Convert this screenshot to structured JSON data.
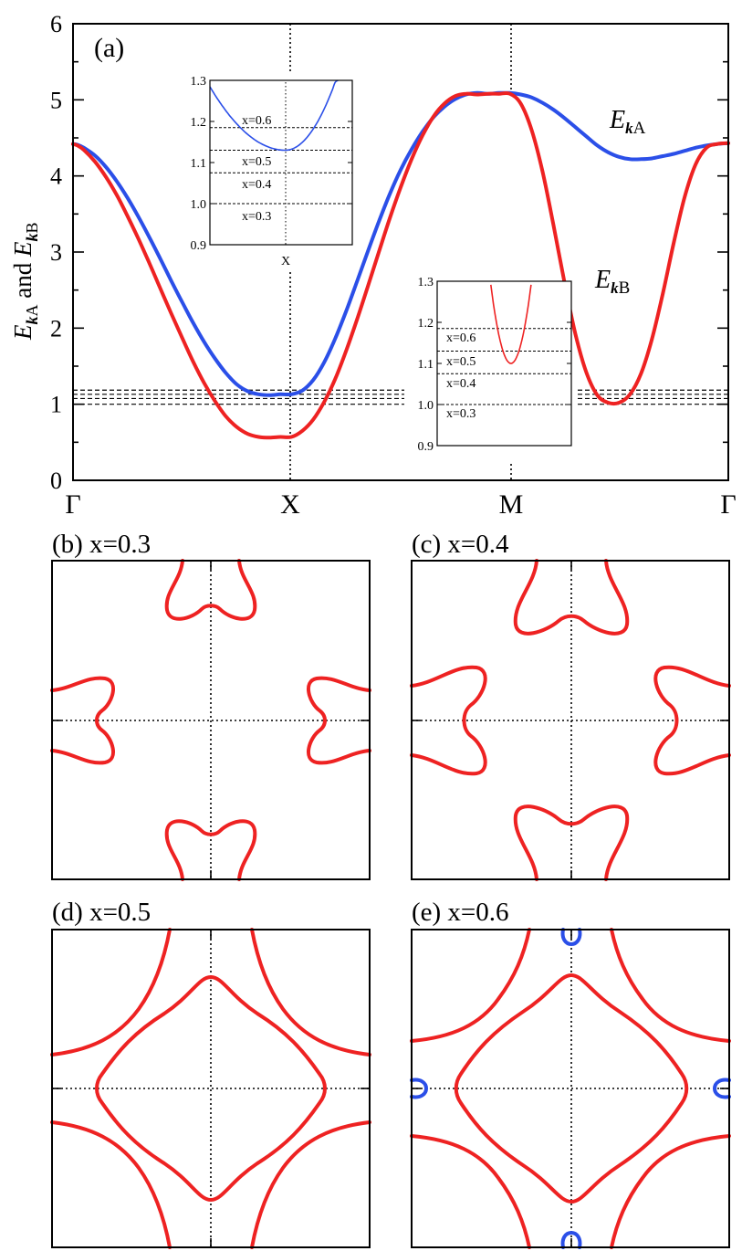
{
  "colors": {
    "band_A": "#2b4fe8",
    "band_B": "#ee2222",
    "axes": "#000000"
  },
  "chart_data": [
    {
      "id": "a",
      "type": "line",
      "panel_label": "(a)",
      "ylabel": {
        "part1_italic": "E",
        "part1_sub": "k",
        "part1_tail": "A",
        "and": " and ",
        "part2_italic": "E",
        "part2_sub": "k",
        "part2_tail": "B"
      },
      "x_ticks": [
        "Γ",
        "X",
        "M",
        "Γ"
      ],
      "y_ticks": [
        "0",
        "1",
        "2",
        "3",
        "4",
        "5",
        "6"
      ],
      "ylim": [
        0,
        6
      ],
      "dashed_levels": [
        1.0,
        1.075,
        1.13,
        1.185
      ],
      "series": [
        {
          "name": "E_kA",
          "label": {
            "italic": "E",
            "sub": "k",
            "tail": "A"
          },
          "color": "#2b4fe8",
          "x": [
            0.0,
            0.02,
            0.05,
            0.1,
            0.15,
            0.2,
            0.25,
            0.3,
            0.35,
            0.4,
            0.45,
            0.5,
            0.55,
            0.6,
            0.65,
            0.7,
            0.75,
            0.8,
            0.85,
            0.9,
            0.95,
            1.0,
            1.05,
            1.1,
            1.15,
            1.2,
            1.25,
            1.3,
            1.35,
            1.4,
            1.45,
            1.5,
            1.55,
            1.6,
            1.65,
            1.7,
            1.75,
            1.8,
            1.85,
            1.9,
            1.95,
            2.0,
            2.05,
            2.1,
            2.15,
            2.2,
            2.25,
            2.3,
            2.35,
            2.4,
            2.45,
            2.5,
            2.55,
            2.6,
            2.65,
            2.7,
            2.75,
            2.8,
            2.85,
            2.9,
            2.95,
            3.0
          ],
          "y": [
            4.42,
            4.41,
            4.37,
            4.27,
            4.12,
            3.93,
            3.71,
            3.46,
            3.19,
            2.91,
            2.62,
            2.34,
            2.07,
            1.82,
            1.6,
            1.41,
            1.26,
            1.17,
            1.13,
            1.12,
            1.13,
            1.13,
            1.18,
            1.32,
            1.55,
            1.86,
            2.22,
            2.61,
            3.01,
            3.4,
            3.76,
            4.08,
            4.35,
            4.58,
            4.77,
            4.91,
            5.01,
            5.07,
            5.09,
            5.08,
            5.09,
            5.09,
            5.07,
            5.03,
            4.96,
            4.87,
            4.76,
            4.64,
            4.52,
            4.4,
            4.31,
            4.25,
            4.22,
            4.22,
            4.23,
            4.26,
            4.29,
            4.33,
            4.37,
            4.4,
            4.42,
            4.43
          ]
        },
        {
          "name": "E_kB",
          "label": {
            "italic": "E",
            "sub": "k",
            "tail": "B"
          },
          "color": "#ee2222",
          "x": [
            0.0,
            0.02,
            0.05,
            0.1,
            0.15,
            0.2,
            0.25,
            0.3,
            0.35,
            0.4,
            0.45,
            0.5,
            0.55,
            0.6,
            0.65,
            0.7,
            0.75,
            0.8,
            0.85,
            0.9,
            0.95,
            1.0,
            1.05,
            1.1,
            1.15,
            1.2,
            1.25,
            1.3,
            1.35,
            1.4,
            1.45,
            1.5,
            1.55,
            1.6,
            1.65,
            1.7,
            1.75,
            1.8,
            1.85,
            1.9,
            1.95,
            2.0,
            2.05,
            2.1,
            2.15,
            2.2,
            2.25,
            2.3,
            2.35,
            2.4,
            2.45,
            2.5,
            2.55,
            2.6,
            2.65,
            2.7,
            2.75,
            2.8,
            2.85,
            2.9,
            2.95,
            3.0
          ],
          "y": [
            4.42,
            4.4,
            4.34,
            4.19,
            3.99,
            3.75,
            3.47,
            3.17,
            2.85,
            2.52,
            2.19,
            1.87,
            1.56,
            1.28,
            1.04,
            0.84,
            0.7,
            0.61,
            0.57,
            0.56,
            0.57,
            0.57,
            0.65,
            0.8,
            1.03,
            1.33,
            1.7,
            2.11,
            2.55,
            3.0,
            3.44,
            3.85,
            4.22,
            4.53,
            4.78,
            4.95,
            5.05,
            5.08,
            5.07,
            5.08,
            5.08,
            5.08,
            4.95,
            4.6,
            4.05,
            3.35,
            2.6,
            1.92,
            1.42,
            1.12,
            1.02,
            1.02,
            1.13,
            1.4,
            1.85,
            2.45,
            3.12,
            3.72,
            4.15,
            4.37,
            4.42,
            4.43
          ]
        }
      ],
      "insets": [
        {
          "id": "inset-x",
          "ylim": [
            0.9,
            1.3
          ],
          "y_ticks": [
            "0.9",
            "1.0",
            "1.1",
            "1.2",
            "1.3"
          ],
          "x_tick": "X",
          "level_labels": [
            "x=0.6",
            "x=0.5",
            "x=0.4",
            "x=0.3"
          ],
          "levels": [
            1.185,
            1.13,
            1.075,
            1.0
          ],
          "series_color": "#2b4fe8"
        },
        {
          "id": "inset-m",
          "ylim": [
            0.9,
            1.3
          ],
          "y_ticks": [
            "0.9",
            "1.0",
            "1.1",
            "1.2",
            "1.3"
          ],
          "level_labels": [
            "x=0.6",
            "x=0.5",
            "x=0.4",
            "x=0.3"
          ],
          "levels": [
            1.185,
            1.13,
            1.075,
            1.0
          ],
          "series_color": "#ee2222"
        }
      ]
    },
    {
      "id": "b",
      "type": "fermi-surface",
      "title": "(b) x=0.3",
      "series_colors": [
        "#ee2222"
      ]
    },
    {
      "id": "c",
      "type": "fermi-surface",
      "title": "(c) x=0.4",
      "series_colors": [
        "#ee2222"
      ]
    },
    {
      "id": "d",
      "type": "fermi-surface",
      "title": "(d) x=0.5",
      "series_colors": [
        "#ee2222"
      ]
    },
    {
      "id": "e",
      "type": "fermi-surface",
      "title": "(e) x=0.6",
      "series_colors": [
        "#ee2222",
        "#2b4fe8"
      ]
    }
  ]
}
